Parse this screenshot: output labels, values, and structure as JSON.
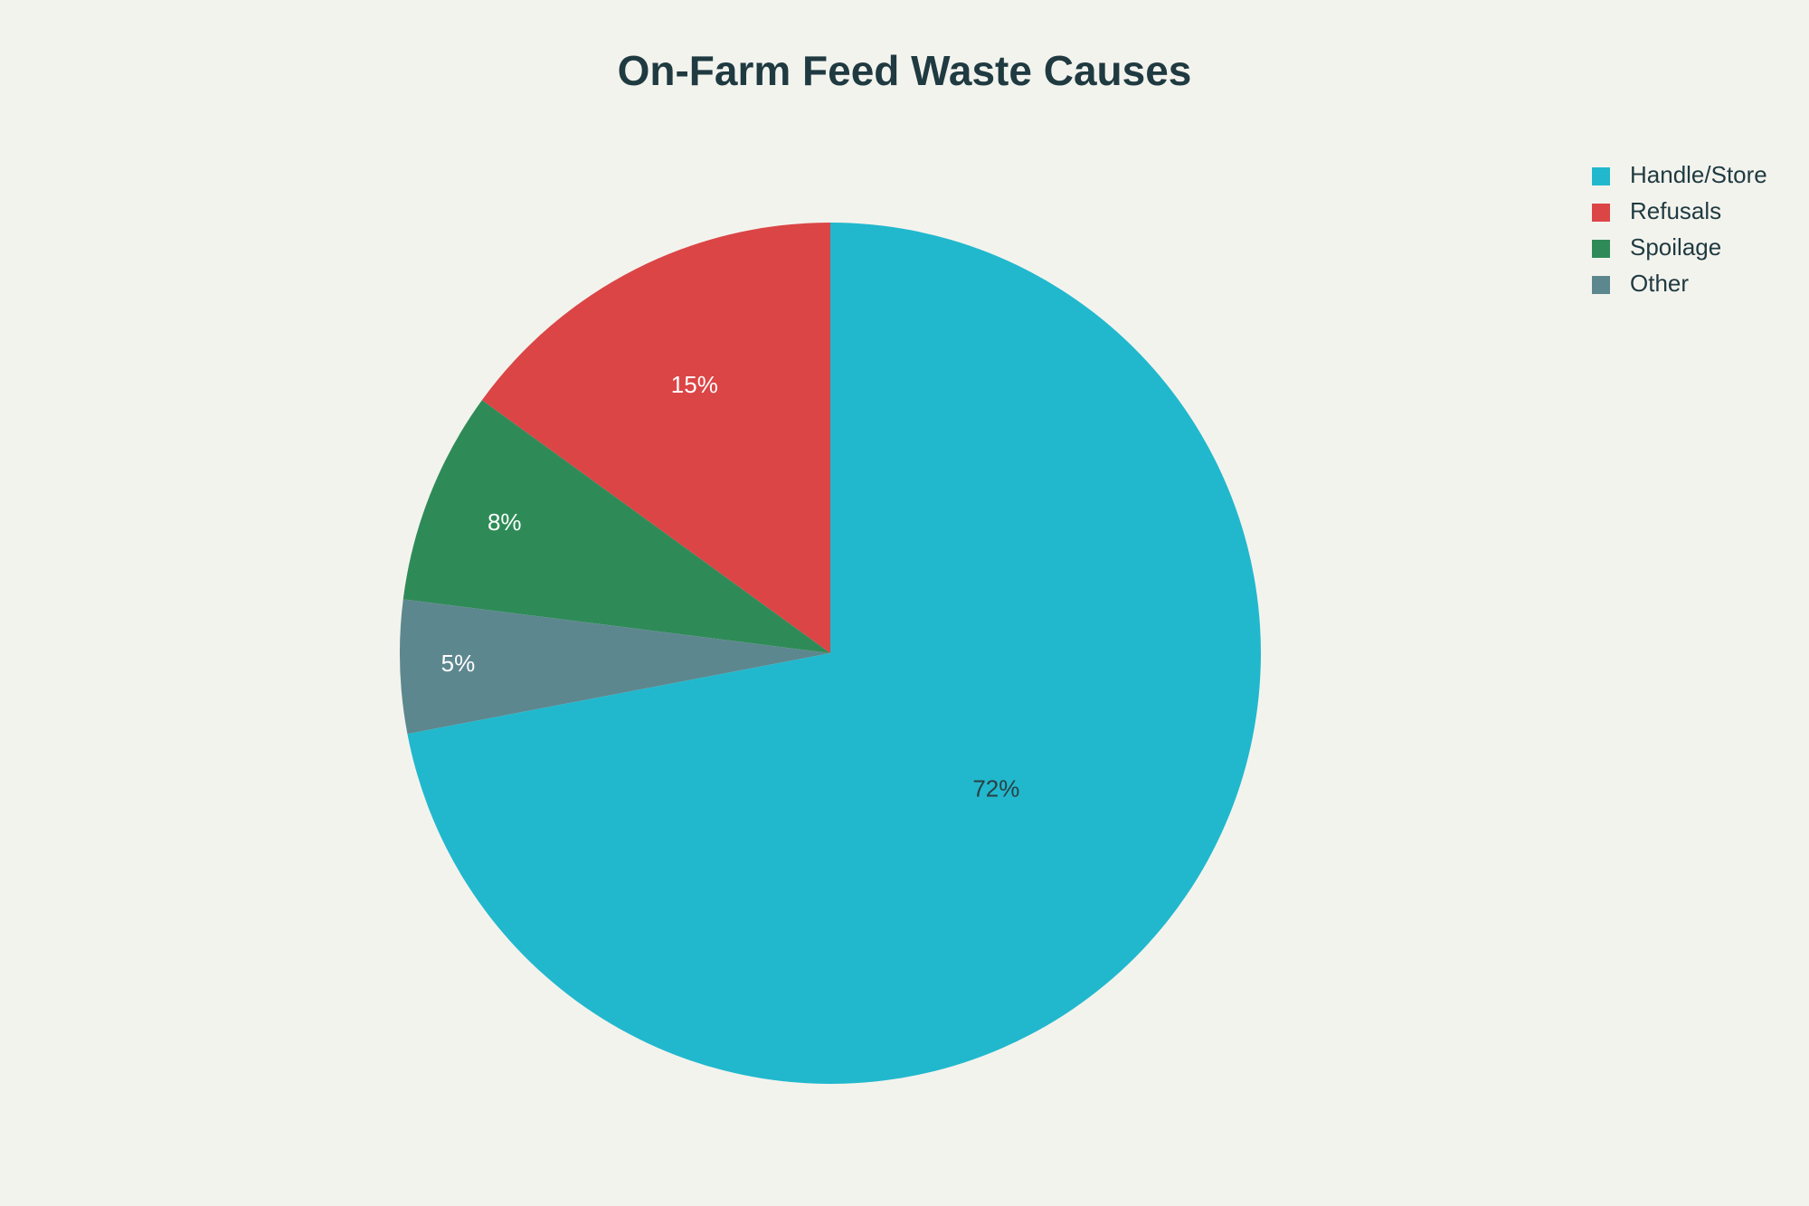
{
  "chart_data": {
    "type": "pie",
    "title": "On-Farm Feed Waste Causes",
    "categories": [
      "Handle/Store",
      "Refusals",
      "Spoilage",
      "Other"
    ],
    "values": [
      72,
      15,
      8,
      5
    ],
    "value_labels": [
      "72%",
      "15%",
      "8%",
      "5%"
    ],
    "colors": [
      "#21b8cd",
      "#db4546",
      "#2e8b57",
      "#5d878f"
    ],
    "legend": "top-right"
  }
}
